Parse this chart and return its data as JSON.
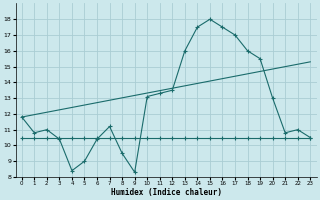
{
  "xlabel": "Humidex (Indice chaleur)",
  "background_color": "#cce8ec",
  "grid_color": "#aacdd4",
  "line_color": "#1a6b6b",
  "x_ticks": [
    0,
    1,
    2,
    3,
    4,
    5,
    6,
    7,
    8,
    9,
    10,
    11,
    12,
    13,
    14,
    15,
    16,
    17,
    18,
    19,
    20,
    21,
    22,
    23
  ],
  "ylim": [
    8,
    19
  ],
  "yticks": [
    8,
    9,
    10,
    11,
    12,
    13,
    14,
    15,
    16,
    17,
    18
  ],
  "line1_x": [
    0,
    1,
    2,
    3,
    4,
    5,
    6,
    7,
    8,
    9,
    10,
    11,
    12,
    13,
    14,
    15,
    16,
    17,
    18,
    19,
    20,
    21,
    22,
    23
  ],
  "line1_y": [
    11.8,
    10.8,
    11.0,
    10.4,
    8.4,
    9.0,
    10.4,
    11.2,
    9.5,
    8.3,
    13.1,
    13.3,
    13.5,
    16.0,
    17.5,
    18.0,
    17.5,
    17.0,
    16.0,
    15.5,
    13.0,
    10.8,
    11.0,
    10.5
  ],
  "line2_x": [
    0,
    1,
    2,
    3,
    4,
    5,
    6,
    7,
    8,
    9,
    10,
    11,
    12,
    13,
    14,
    15,
    16,
    17,
    18,
    19,
    20,
    21,
    22,
    23
  ],
  "line2_y": [
    10.5,
    10.5,
    10.5,
    10.5,
    10.5,
    10.5,
    10.5,
    10.5,
    10.5,
    10.5,
    10.5,
    10.5,
    10.5,
    10.5,
    10.5,
    10.5,
    10.5,
    10.5,
    10.5,
    10.5,
    10.5,
    10.5,
    10.5,
    10.5
  ],
  "line3_x": [
    0,
    23
  ],
  "line3_y": [
    11.8,
    15.3
  ]
}
